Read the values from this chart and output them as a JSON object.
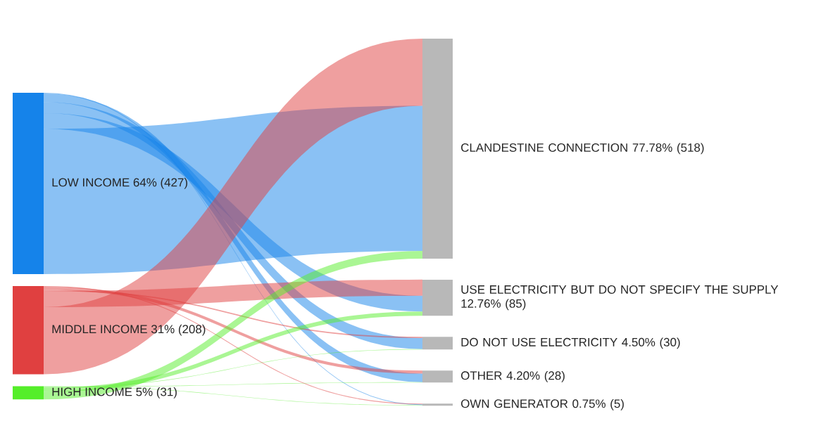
{
  "chart_data": {
    "type": "other",
    "categories": [
      "LOW INCOME",
      "MIDDLE INCOME",
      "HIGH INCOME",
      "CLANDESTINE CONNECTION",
      "USE ELECTRICITY BUT DO NOT SPECIFY THE SUPPLY",
      "DO NOT USE ELECTRICITY",
      "OTHER",
      "OWN GENERATOR"
    ],
    "values": [
      427,
      208,
      31,
      518,
      85,
      30,
      28,
      5
    ],
    "value_labels": [
      "64% (427)",
      "31% (208)",
      "5% (31)",
      "77.78% (518)",
      "12.76% (85)",
      "4.50% (30)",
      "4.20% (28)",
      "0.75% (5)"
    ],
    "colors": [
      "#1583ea",
      "#e04040",
      "#55ee2a",
      "#b8b8b8",
      "#b8b8b8",
      "#b8b8b8",
      "#b8b8b8",
      "#b8b8b8"
    ]
  }
}
